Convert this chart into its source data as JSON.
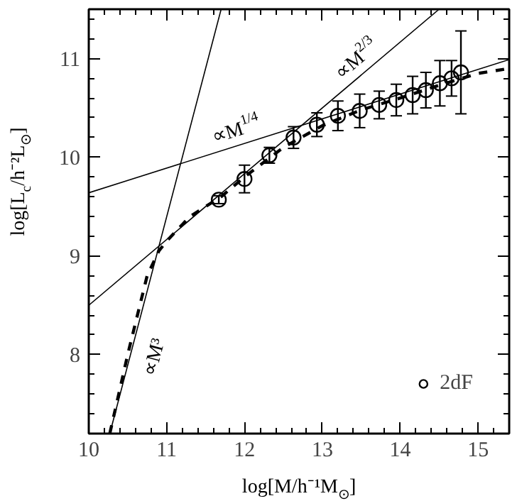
{
  "chart_data": {
    "type": "scatter",
    "xlabel": "log[M/h⁻¹M$_{⊙}$]",
    "ylabel": "log[L$_{c}$/h⁻²L$_{⊙}$]",
    "xlim": [
      10,
      15.4
    ],
    "ylim": [
      7.2,
      11.5
    ],
    "xticks": [
      10,
      11,
      12,
      13,
      14,
      15
    ],
    "yticks": [
      8,
      9,
      10,
      11
    ],
    "legend": "bottom right",
    "marker": "circle",
    "grid": false,
    "series": [
      {
        "name": "2dF",
        "color": "#000000",
        "x": [
          11.67,
          12.0,
          12.32,
          12.63,
          12.93,
          13.2,
          13.48,
          13.73,
          13.95,
          14.16,
          14.33,
          14.51,
          14.66,
          14.78
        ],
        "values": [
          9.57,
          9.78,
          10.02,
          10.2,
          10.33,
          10.42,
          10.47,
          10.53,
          10.58,
          10.63,
          10.68,
          10.75,
          10.8,
          10.86
        ],
        "errors": [
          0.04,
          0.14,
          0.08,
          0.11,
          0.12,
          0.15,
          0.17,
          0.14,
          0.16,
          0.19,
          0.18,
          0.23,
          0.18,
          0.42
        ]
      },
      {
        "type": "line",
        "color": "#000000",
        "line_style": "dashed",
        "marker": "none",
        "x": [
          10.27,
          10.5,
          10.75,
          10.9,
          11.0,
          11.3,
          11.7,
          12.0,
          12.5,
          13.0,
          13.5,
          14.0,
          14.5,
          15.0,
          15.4
        ],
        "values": [
          7.2,
          8.0,
          8.8,
          9.05,
          9.15,
          9.4,
          9.6,
          9.8,
          10.1,
          10.32,
          10.48,
          10.6,
          10.73,
          10.85,
          10.9
        ]
      },
      {
        "type": "line",
        "color": "#000000",
        "line_style": "solid",
        "marker": "none",
        "x": [
          10,
          15.4
        ],
        "values": [
          9.64,
          10.99
        ]
      },
      {
        "type": "line",
        "color": "#000000",
        "line_style": "solid",
        "marker": "none",
        "x": [
          10,
          14.5
        ],
        "values": [
          8.5,
          11.5
        ]
      },
      {
        "type": "line",
        "color": "#000000",
        "line_style": "solid",
        "marker": "none",
        "x": [
          10.27,
          11.7
        ],
        "values": [
          7.2,
          11.5
        ]
      }
    ],
    "annotations": [
      "∝M$^{1/4}$",
      "∝M$^{2/3}$",
      "∝M³"
    ]
  }
}
